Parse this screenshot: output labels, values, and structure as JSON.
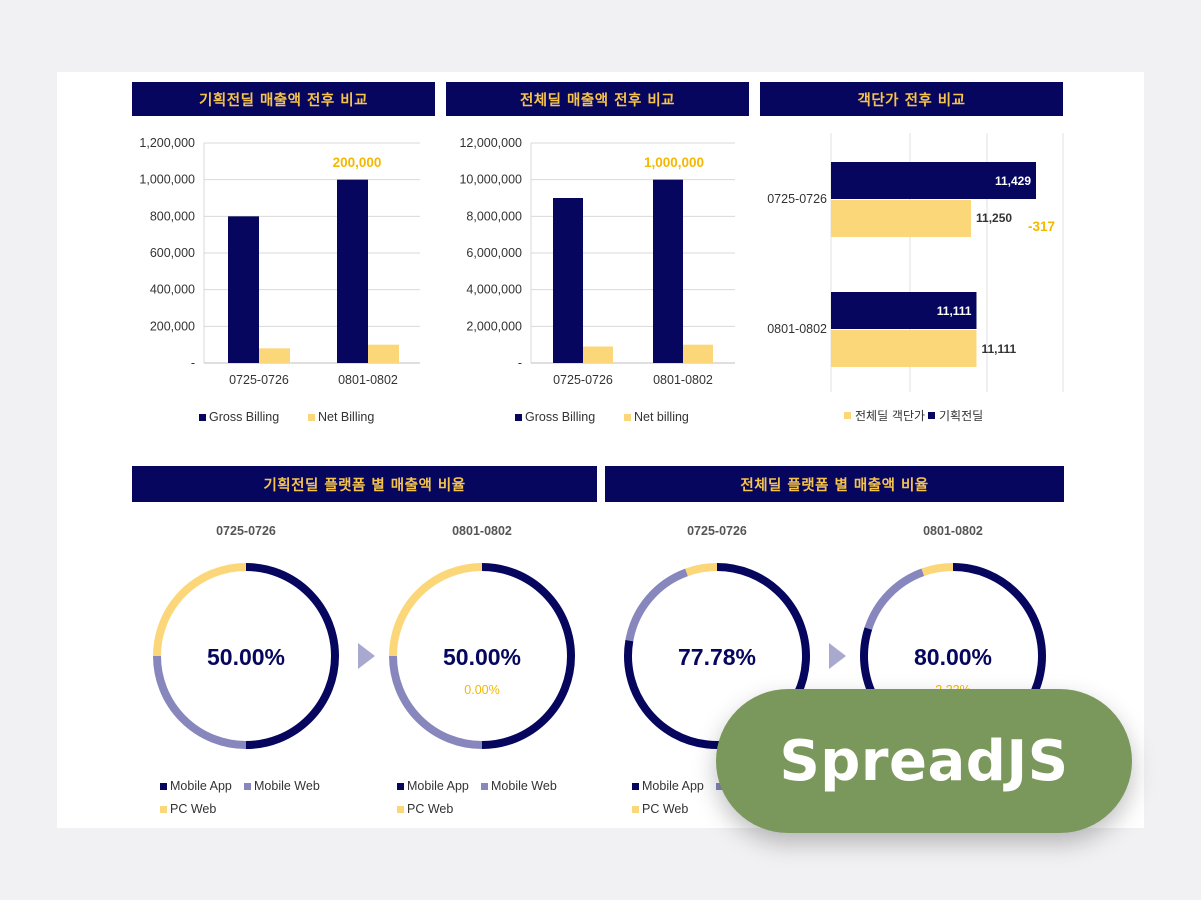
{
  "colors": {
    "navy": "#06065f",
    "gold": "#f6c44b",
    "yellow": "#fcd77a",
    "purple": "#8787bd",
    "badge": "#7b985c"
  },
  "headers": {
    "planned_sales": "기획전딜 매출액 전후 비교",
    "total_sales": "전체딜 매출액 전후 비교",
    "avg_price": "객단가 전후 비교",
    "planned_platform": "기획전딜 플랫폼 별 매출액 비율",
    "total_platform": "전체딜 플랫폼 별 매출액 비율"
  },
  "badge": {
    "label": "SpreadJS"
  },
  "arrow_icon": "triangle-right-icon",
  "chart_data": [
    {
      "type": "bar",
      "categories": [
        "0725-0726",
        "0801-0802"
      ],
      "series": [
        {
          "name": "Gross Billing",
          "values": [
            800000,
            1000000
          ]
        },
        {
          "name": "Net Billing",
          "values": [
            80000,
            100000
          ]
        }
      ],
      "yticks": [
        "-",
        "200,000",
        "400,000",
        "600,000",
        "800,000",
        "1,000,000",
        "1,200,000"
      ],
      "ylim": [
        0,
        1200000
      ],
      "annotation": "200,000",
      "legend": "bottom"
    },
    {
      "type": "bar",
      "categories": [
        "0725-0726",
        "0801-0802"
      ],
      "series": [
        {
          "name": "Gross Billing",
          "values": [
            9000000,
            10000000
          ]
        },
        {
          "name": "Net billing",
          "values": [
            900000,
            1000000
          ]
        }
      ],
      "yticks": [
        "-",
        "2,000,000",
        "4,000,000",
        "6,000,000",
        "8,000,000",
        "10,000,000",
        "12,000,000"
      ],
      "ylim": [
        0,
        12000000
      ],
      "annotation": "1,000,000",
      "legend": "bottom"
    },
    {
      "type": "bar",
      "orientation": "horizontal",
      "categories": [
        "0725-0726",
        "0801-0802"
      ],
      "series": [
        {
          "name": "기획전딜",
          "values": [
            11429,
            11111
          ],
          "labels": [
            "11,429",
            "11,111"
          ]
        },
        {
          "name": "전체딜 객단가",
          "values": [
            11250,
            11111
          ],
          "labels": [
            "11,250",
            "11,111"
          ]
        }
      ],
      "legend_order": [
        "전체딜 객단가",
        "기획전딜"
      ],
      "annotation": "-317",
      "legend": "bottom"
    },
    {
      "type": "pie",
      "title": "0725-0726",
      "labels": [
        "Mobile App",
        "Mobile Web",
        "PC Web"
      ],
      "values": [
        50,
        25,
        25
      ],
      "center_label": "50.00%"
    },
    {
      "type": "pie",
      "title": "0801-0802",
      "labels": [
        "Mobile App",
        "Mobile Web",
        "PC Web"
      ],
      "values": [
        50,
        25,
        25
      ],
      "center_label": "50.00%",
      "sub_label": "0.00%"
    },
    {
      "type": "pie",
      "title": "0725-0726",
      "labels": [
        "Mobile App",
        "Mobile Web",
        "PC Web"
      ],
      "values": [
        77.78,
        16.67,
        5.55
      ],
      "center_label": "77.78%"
    },
    {
      "type": "pie",
      "title": "0801-0802",
      "labels": [
        "Mobile App",
        "Mobile Web",
        "PC Web"
      ],
      "values": [
        80,
        14.5,
        5.5
      ],
      "center_label": "80.00%",
      "sub_label": "2.22%"
    }
  ]
}
